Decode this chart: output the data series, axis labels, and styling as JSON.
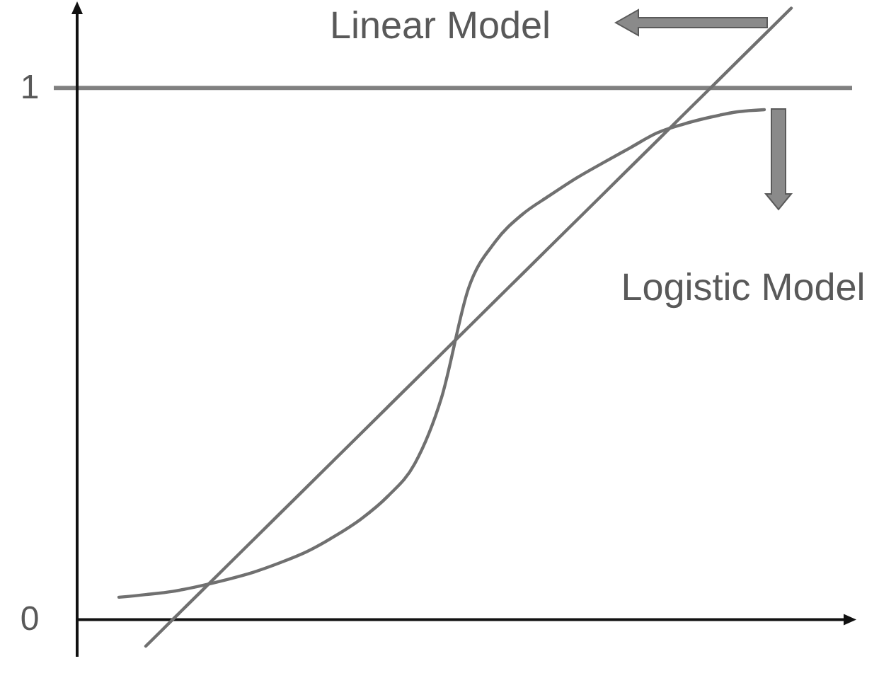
{
  "chart_data": {
    "type": "line",
    "categories": [
      null,
      null,
      null,
      null,
      null,
      null,
      null,
      null,
      null,
      null,
      null,
      null,
      null,
      null,
      null,
      null,
      null,
      null,
      null,
      null,
      null,
      null,
      null,
      null,
      null,
      null
    ],
    "series": [
      {
        "color": "#707070",
        "values": [
          null,
          -0.05,
          0,
          0.05,
          0.1,
          0.15,
          0.2,
          0.25,
          0.3,
          0.35,
          0.4,
          0.45,
          0.5,
          0.55,
          0.6,
          0.65,
          0.7,
          0.75,
          0.8,
          0.85,
          0.9,
          0.95,
          1,
          1.05,
          1.1,
          1.15
        ]
      },
      {
        "color": "#707070",
        "values": [
          0.042,
          0.047,
          0.053,
          0.063,
          0.075,
          0.089,
          0.107,
          0.128,
          0.156,
          0.189,
          0.232,
          0.293,
          0.418,
          0.623,
          0.711,
          0.762,
          0.797,
          0.83,
          0.859,
          0.887,
          0.915,
          0.932,
          0.945,
          0.955,
          0.959,
          null
        ]
      }
    ],
    "ylim": [
      -0.07,
      1.16
    ],
    "yticks": [
      0,
      1
    ],
    "tick_labels": "y",
    "ref_lines": [
      {
        "axis": "y",
        "value": 1,
        "color": "#808080"
      }
    ],
    "annotations": [
      "Linear Model",
      "Logistic Model"
    ]
  }
}
